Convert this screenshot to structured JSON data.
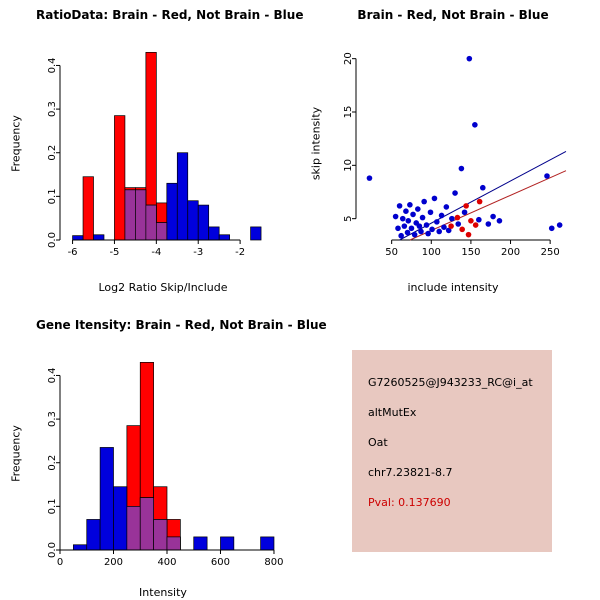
{
  "colors": {
    "red": "#ff0000",
    "blue": "#0000dd",
    "overlap": "#993399",
    "scatter_blue": "#0000cd",
    "scatter_red": "#dd0000",
    "line_blue": "#00008b",
    "line_red": "#b22222",
    "axis": "#000000",
    "info_bg": "#e8c8c0",
    "pval_red": "#cc0000"
  },
  "panels": {
    "info": {
      "lines": [
        "G7260525@J943233_RC@i_at",
        "altMutEx",
        "Oat",
        "chr7.23821-8.7"
      ],
      "pval": "Pval: 0.137690"
    }
  },
  "chart_data": [
    {
      "id": "svg-ratio",
      "panel": "top-left",
      "type": "bar",
      "title": "RatioData: Brain - Red, Not Brain - Blue",
      "xlabel": "Log2 Ratio Skip/Include",
      "ylabel": "Frequency",
      "xlim": [
        -6.3,
        -1.0
      ],
      "ylim": [
        0,
        0.44
      ],
      "xticks": [
        -6,
        -5,
        -4,
        -3,
        -2
      ],
      "yticks": [
        0,
        0.1,
        0.2,
        0.3,
        0.4
      ],
      "ytick_decimals": 1,
      "bin_width": 0.25,
      "grid": false,
      "legend": false,
      "series": [
        {
          "name": "Brain",
          "color_key": "red",
          "bins": [
            [
              -5.75,
              0.145
            ],
            [
              -5.0,
              0.285
            ],
            [
              -4.75,
              0.12
            ],
            [
              -4.5,
              0.12
            ],
            [
              -4.25,
              0.43
            ],
            [
              -4.0,
              0.085
            ]
          ]
        },
        {
          "name": "Not Brain",
          "color_key": "blue",
          "bins": [
            [
              -6.0,
              0.01
            ],
            [
              -5.5,
              0.012
            ],
            [
              -4.75,
              0.115
            ],
            [
              -4.5,
              0.115
            ],
            [
              -4.25,
              0.08
            ],
            [
              -4.0,
              0.04
            ],
            [
              -3.75,
              0.13
            ],
            [
              -3.5,
              0.2
            ],
            [
              -3.25,
              0.09
            ],
            [
              -3.0,
              0.08
            ],
            [
              -2.75,
              0.03
            ],
            [
              -2.5,
              0.012
            ],
            [
              -1.75,
              0.03
            ]
          ]
        }
      ]
    },
    {
      "id": "svg-scatter",
      "panel": "top-right",
      "type": "scatter",
      "title": "Brain - Red, Not Brain - Blue",
      "xlabel": "include intensity",
      "ylabel": "skip intensity",
      "xlim": [
        5,
        270
      ],
      "ylim": [
        3,
        21
      ],
      "xticks": [
        50,
        100,
        150,
        200,
        250
      ],
      "yticks": [
        5,
        10,
        15,
        20
      ],
      "ytick_decimals": 0,
      "grid": false,
      "legend": false,
      "series": [
        {
          "name": "Not Brain",
          "color_key": "scatter_blue",
          "points": [
            [
              22,
              8.8
            ],
            [
              55,
              5.2
            ],
            [
              58,
              4.1
            ],
            [
              60,
              6.2
            ],
            [
              62,
              3.4
            ],
            [
              64,
              5.0
            ],
            [
              66,
              4.3
            ],
            [
              68,
              5.7
            ],
            [
              70,
              3.7
            ],
            [
              71,
              4.8
            ],
            [
              73,
              6.3
            ],
            [
              75,
              4.1
            ],
            [
              77,
              5.4
            ],
            [
              79,
              3.5
            ],
            [
              81,
              4.6
            ],
            [
              83,
              5.9
            ],
            [
              85,
              4.3
            ],
            [
              87,
              3.8
            ],
            [
              89,
              5.1
            ],
            [
              91,
              6.6
            ],
            [
              94,
              4.4
            ],
            [
              96,
              3.6
            ],
            [
              99,
              5.6
            ],
            [
              101,
              4.0
            ],
            [
              104,
              6.9
            ],
            [
              107,
              4.7
            ],
            [
              110,
              3.8
            ],
            [
              113,
              5.3
            ],
            [
              116,
              4.2
            ],
            [
              119,
              6.1
            ],
            [
              122,
              3.9
            ],
            [
              126,
              5.0
            ],
            [
              130,
              7.4
            ],
            [
              134,
              4.5
            ],
            [
              138,
              9.7
            ],
            [
              142,
              5.6
            ],
            [
              148,
              20.0
            ],
            [
              155,
              13.8
            ],
            [
              160,
              4.9
            ],
            [
              165,
              7.9
            ],
            [
              172,
              4.5
            ],
            [
              178,
              5.2
            ],
            [
              186,
              4.8
            ],
            [
              246,
              9.0
            ],
            [
              252,
              4.1
            ],
            [
              262,
              4.4
            ]
          ]
        },
        {
          "name": "Brain",
          "color_key": "scatter_red",
          "points": [
            [
              125,
              4.3
            ],
            [
              133,
              5.1
            ],
            [
              139,
              4.0
            ],
            [
              144,
              6.2
            ],
            [
              147,
              3.5
            ],
            [
              150,
              4.8
            ],
            [
              156,
              4.4
            ],
            [
              161,
              6.6
            ]
          ]
        }
      ],
      "lines": [
        {
          "name": "regression-line-blue",
          "color_key": "line_blue",
          "x1": 60,
          "y1": 3.0,
          "x2": 270,
          "y2": 11.3
        },
        {
          "name": "regression-line-red",
          "color_key": "line_red",
          "x1": 73,
          "y1": 3.0,
          "x2": 270,
          "y2": 9.5
        }
      ]
    },
    {
      "id": "svg-gene",
      "panel": "bottom-left",
      "type": "bar",
      "title": "Gene Itensity: Brain - Red, Not Brain - Blue",
      "xlabel": "Intensity",
      "ylabel": "Frequency",
      "xlim": [
        0,
        830
      ],
      "ylim": [
        0,
        0.44
      ],
      "xticks": [
        0,
        200,
        400,
        600,
        800
      ],
      "yticks": [
        0,
        0.1,
        0.2,
        0.3,
        0.4
      ],
      "ytick_decimals": 1,
      "bin_width": 50,
      "grid": false,
      "legend": false,
      "series": [
        {
          "name": "Brain",
          "color_key": "red",
          "bins": [
            [
              250,
              0.285
            ],
            [
              300,
              0.43
            ],
            [
              350,
              0.145
            ],
            [
              400,
              0.07
            ]
          ]
        },
        {
          "name": "Not Brain",
          "color_key": "blue",
          "bins": [
            [
              50,
              0.012
            ],
            [
              100,
              0.07
            ],
            [
              150,
              0.235
            ],
            [
              200,
              0.145
            ],
            [
              250,
              0.1
            ],
            [
              300,
              0.12
            ],
            [
              350,
              0.07
            ],
            [
              400,
              0.03
            ],
            [
              500,
              0.03
            ],
            [
              600,
              0.03
            ],
            [
              750,
              0.03
            ]
          ]
        }
      ]
    }
  ]
}
